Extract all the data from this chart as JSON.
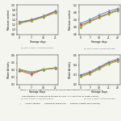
{
  "subplot_A": {
    "xlabel": "Storage days",
    "ylabel": "Moisture content",
    "x": [
      0,
      7,
      14,
      21
    ],
    "lines": [
      {
        "label": "Control",
        "color": "#5b8bc9",
        "marker": "s",
        "y": [
          1.3,
          1.4,
          1.55,
          1.75
        ],
        "yerr": [
          0.04,
          0.04,
          0.05,
          0.05
        ]
      },
      {
        "label": "Cardamom",
        "color": "#c85250",
        "marker": "s",
        "y": [
          1.28,
          1.38,
          1.52,
          1.72
        ],
        "yerr": [
          0.04,
          0.04,
          0.04,
          0.05
        ]
      },
      {
        "label": "Rosemary",
        "color": "#8aaa3c",
        "marker": "s",
        "y": [
          1.25,
          1.35,
          1.5,
          1.68
        ],
        "yerr": [
          0.03,
          0.04,
          0.04,
          0.05
        ]
      }
    ],
    "ylim": [
      0.8,
      2.0
    ],
    "yticks": [
      0.8,
      1.0,
      1.2,
      1.4,
      1.6,
      1.8,
      2.0
    ],
    "xticks": [
      0,
      7,
      14,
      21
    ],
    "sub_xlabel": "(a) Pinni packed in cardboard boxes"
  },
  "subplot_B": {
    "xlabel": "Storage days",
    "ylabel": "Moisture content",
    "x": [
      0,
      7,
      14,
      21,
      28
    ],
    "lines": [
      {
        "label": "Control",
        "color": "#5b8bc9",
        "marker": "s",
        "y": [
          4.2,
          4.4,
          4.65,
          4.85,
          5.0
        ],
        "yerr": [
          0.06,
          0.06,
          0.07,
          0.07,
          0.08
        ]
      },
      {
        "label": "Cardamom",
        "color": "#c85250",
        "marker": "s",
        "y": [
          4.1,
          4.32,
          4.55,
          4.75,
          4.92
        ],
        "yerr": [
          0.05,
          0.06,
          0.06,
          0.07,
          0.07
        ]
      },
      {
        "label": "Rosemary",
        "color": "#8aaa3c",
        "marker": "s",
        "y": [
          4.0,
          4.28,
          4.5,
          4.7,
          4.88
        ],
        "yerr": [
          0.05,
          0.05,
          0.06,
          0.06,
          0.07
        ]
      }
    ],
    "ylim": [
      3.6,
      5.2
    ],
    "yticks": [
      3.6,
      4.0,
      4.4,
      4.8,
      5.2
    ],
    "xticks": [
      0,
      7,
      14,
      21,
      28
    ],
    "sub_xlabel": "(b) Pinni packed in polythene bags"
  },
  "subplot_C": {
    "xlabel": "Storage Days",
    "ylabel": "Water Activity",
    "x": [
      0,
      7,
      14,
      21
    ],
    "lines": [
      {
        "label": "Control",
        "color": "#5b8bc9",
        "marker": "s",
        "y": [
          0.4,
          0.36,
          0.4,
          0.43
        ],
        "yerr": [
          0.01,
          0.015,
          0.01,
          0.01
        ]
      },
      {
        "label": "Cardamom",
        "color": "#c85250",
        "marker": "s",
        "y": [
          0.39,
          0.34,
          0.41,
          0.42
        ],
        "yerr": [
          0.015,
          0.015,
          0.01,
          0.01
        ]
      },
      {
        "label": "Rosemary",
        "color": "#8aaa3c",
        "marker": "s",
        "y": [
          0.41,
          0.37,
          0.41,
          0.43
        ],
        "yerr": [
          0.01,
          0.01,
          0.01,
          0.01
        ]
      }
    ],
    "ylim": [
      0.2,
      0.6
    ],
    "yticks": [
      0.2,
      0.3,
      0.4,
      0.5,
      0.6
    ],
    "xticks": [
      0,
      7,
      14,
      21
    ],
    "sub_xlabel": "(a) Pinni packed in cardboard boxes"
  },
  "subplot_D": {
    "xlabel": "Storage Days",
    "ylabel": "Water Activity",
    "x": [
      0,
      7,
      14,
      21,
      28
    ],
    "lines": [
      {
        "label": "Control",
        "color": "#5b8bc9",
        "marker": "s",
        "y": [
          0.3,
          0.33,
          0.38,
          0.43,
          0.46
        ],
        "yerr": [
          0.01,
          0.01,
          0.01,
          0.01,
          0.01
        ]
      },
      {
        "label": "Cardamom",
        "color": "#c85250",
        "marker": "s",
        "y": [
          0.29,
          0.32,
          0.37,
          0.42,
          0.45
        ],
        "yerr": [
          0.01,
          0.01,
          0.01,
          0.01,
          0.01
        ]
      },
      {
        "label": "Rosemary",
        "color": "#8aaa3c",
        "marker": "s",
        "y": [
          0.28,
          0.31,
          0.36,
          0.41,
          0.44
        ],
        "yerr": [
          0.01,
          0.01,
          0.01,
          0.01,
          0.01
        ]
      }
    ],
    "ylim": [
      0.2,
      0.5
    ],
    "yticks": [
      0.2,
      0.3,
      0.4,
      0.5
    ],
    "xticks": [
      0,
      7,
      14,
      21,
      28
    ],
    "sub_xlabel": "(b) Pinni packed in polythene bags"
  },
  "figure_caption_line1": "Figure 1: Effect of natural preservatives and packing methods on Physico -chemical",
  "figure_caption_line2": "characteristics of pinni during storage at 30±1˚C (A: Moisture; B: Water activity)",
  "figure_caption_line3": "(       Control sample,      Cardamom added and       Rosemary added pinni sample)",
  "background_color": "#f5f5f0"
}
